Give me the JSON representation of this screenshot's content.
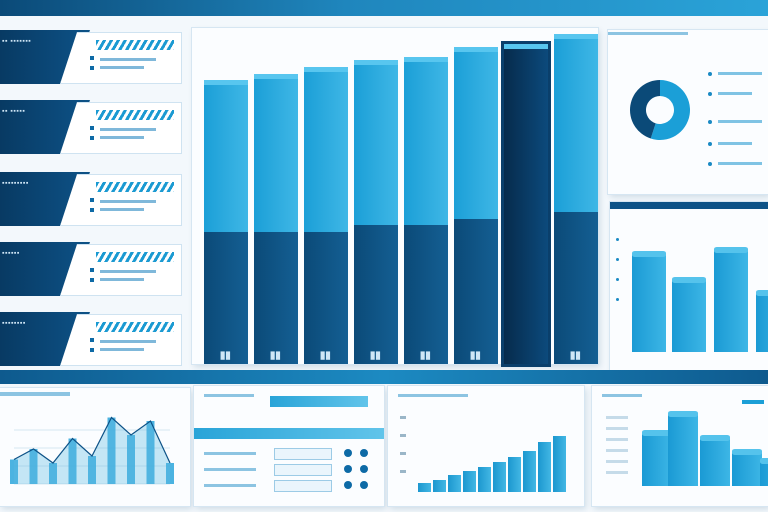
{
  "theme": {
    "primary": "#0b4a78",
    "accent": "#1b9fd7",
    "light": "#58c6ef",
    "background": "#f3f8fc"
  },
  "left_rows": [
    {
      "title": "▪▪ ▪▪▪▪▪▪▪"
    },
    {
      "title": "▪▪ ▪▪▪▪▪"
    },
    {
      "title": "▪▪▪▪▪▪▪▪▪"
    },
    {
      "title": "▪▪▪▪▪▪"
    },
    {
      "title": "▪▪▪▪▪▪▪▪"
    }
  ],
  "main_chart": {
    "values": [
      0.86,
      0.88,
      0.9,
      0.92,
      0.93,
      0.96,
      0.97,
      1.0
    ],
    "split": [
      0.4,
      0.4,
      0.4,
      0.42,
      0.42,
      0.44,
      0.44,
      0.46
    ],
    "labels": [
      "▊▊",
      "▊▊",
      "▊▊",
      "▊▊",
      "▊▊",
      "▊▊",
      "",
      "▊▊"
    ],
    "highlight_index": 6
  },
  "donut": {
    "values": [
      0.55,
      0.45
    ],
    "colors": [
      "#1b9fd7",
      "#0b4a78"
    ]
  },
  "right_bars": {
    "values": [
      0.75,
      0.55,
      0.78,
      0.45
    ]
  },
  "bottom_line": {
    "values": [
      0.35,
      0.5,
      0.3,
      0.65,
      0.4,
      0.95,
      0.7,
      0.9,
      0.3
    ]
  },
  "bottom_growth": {
    "values": [
      0.15,
      0.2,
      0.28,
      0.34,
      0.4,
      0.48,
      0.56,
      0.66,
      0.8,
      0.9
    ]
  },
  "bottom_bars": {
    "values": [
      0.6,
      0.82,
      0.55,
      0.38,
      0.28
    ]
  }
}
